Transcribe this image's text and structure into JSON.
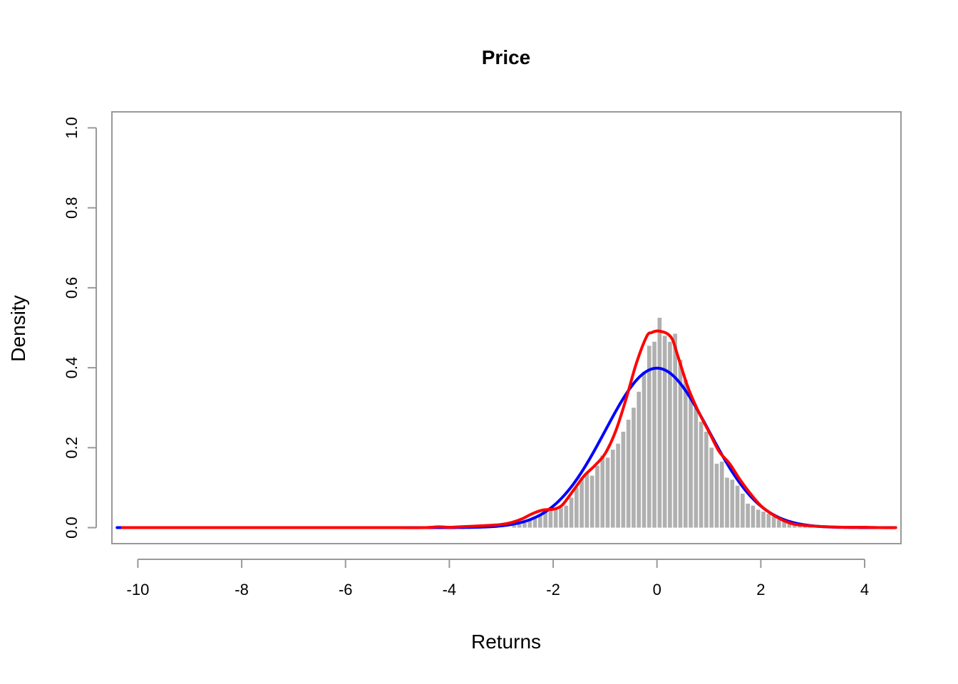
{
  "chart_data": {
    "type": "bar",
    "title": "Price",
    "xlabel": "Returns",
    "ylabel": "Density",
    "xlim": [
      -10.5,
      4.7
    ],
    "ylim": [
      -0.04,
      1.04
    ],
    "xticks": [
      -10,
      -8,
      -6,
      -4,
      -2,
      0,
      2,
      4
    ],
    "yticks": [
      0.0,
      0.2,
      0.4,
      0.6,
      0.8,
      1.0
    ],
    "xtick_labels": [
      "-10",
      "-8",
      "-6",
      "-4",
      "-2",
      "0",
      "2",
      "4"
    ],
    "ytick_labels": [
      "0.0",
      "0.2",
      "0.4",
      "0.6",
      "0.8",
      "1.0"
    ],
    "histogram": {
      "bin_width": 0.1,
      "color": "#b0b0b0",
      "bins": [
        [
          -2.8,
          0.005
        ],
        [
          -2.7,
          0.008
        ],
        [
          -2.6,
          0.012
        ],
        [
          -2.5,
          0.018
        ],
        [
          -2.4,
          0.024
        ],
        [
          -2.3,
          0.032
        ],
        [
          -2.2,
          0.04
        ],
        [
          -2.1,
          0.045
        ],
        [
          -2.0,
          0.048
        ],
        [
          -1.9,
          0.05
        ],
        [
          -1.8,
          0.055
        ],
        [
          -1.7,
          0.075
        ],
        [
          -1.6,
          0.1
        ],
        [
          -1.5,
          0.125
        ],
        [
          -1.4,
          0.135
        ],
        [
          -1.3,
          0.13
        ],
        [
          -1.2,
          0.155
        ],
        [
          -1.1,
          0.18
        ],
        [
          -1.0,
          0.175
        ],
        [
          -0.9,
          0.195
        ],
        [
          -0.8,
          0.21
        ],
        [
          -0.7,
          0.24
        ],
        [
          -0.6,
          0.27
        ],
        [
          -0.5,
          0.3
        ],
        [
          -0.4,
          0.34
        ],
        [
          -0.3,
          0.39
        ],
        [
          -0.2,
          0.455
        ],
        [
          -0.1,
          0.465
        ],
        [
          0.0,
          0.525
        ],
        [
          0.1,
          0.48
        ],
        [
          0.2,
          0.465
        ],
        [
          0.3,
          0.485
        ],
        [
          0.4,
          0.42
        ],
        [
          0.5,
          0.37
        ],
        [
          0.6,
          0.33
        ],
        [
          0.7,
          0.3
        ],
        [
          0.8,
          0.265
        ],
        [
          0.9,
          0.24
        ],
        [
          1.0,
          0.2
        ],
        [
          1.1,
          0.16
        ],
        [
          1.2,
          0.165
        ],
        [
          1.3,
          0.125
        ],
        [
          1.4,
          0.12
        ],
        [
          1.5,
          0.105
        ],
        [
          1.6,
          0.085
        ],
        [
          1.7,
          0.06
        ],
        [
          1.8,
          0.055
        ],
        [
          1.9,
          0.045
        ],
        [
          2.0,
          0.04
        ],
        [
          2.1,
          0.035
        ],
        [
          2.2,
          0.028
        ],
        [
          2.3,
          0.02
        ],
        [
          2.4,
          0.015
        ],
        [
          2.5,
          0.012
        ],
        [
          2.6,
          0.01
        ],
        [
          2.7,
          0.006
        ],
        [
          2.8,
          0.004
        ],
        [
          2.9,
          0.003
        ]
      ]
    },
    "series": [
      {
        "kind": "normal-density",
        "color": "#0000ff",
        "mean": 0,
        "sd": 1
      },
      {
        "kind": "kernel-density",
        "color": "#ff0000",
        "x": [
          -10.3,
          -9,
          -8,
          -7,
          -6,
          -5,
          -4.5,
          -4.2,
          -4.0,
          -3.8,
          -3.5,
          -3.2,
          -3.0,
          -2.8,
          -2.6,
          -2.4,
          -2.2,
          -2.0,
          -1.9,
          -1.8,
          -1.6,
          -1.4,
          -1.2,
          -1.0,
          -0.8,
          -0.6,
          -0.4,
          -0.2,
          -0.1,
          0.0,
          0.1,
          0.2,
          0.3,
          0.4,
          0.6,
          0.8,
          1.0,
          1.2,
          1.4,
          1.6,
          1.8,
          2.0,
          2.2,
          2.4,
          2.6,
          2.8,
          3.0,
          3.3,
          3.6,
          4.0,
          4.3,
          4.6
        ],
        "y": [
          0.0,
          0.0,
          0.0,
          0.0,
          0.0,
          0.0,
          0.0,
          0.002,
          0.001,
          0.002,
          0.004,
          0.006,
          0.008,
          0.013,
          0.022,
          0.035,
          0.044,
          0.046,
          0.05,
          0.06,
          0.095,
          0.13,
          0.155,
          0.185,
          0.24,
          0.32,
          0.41,
          0.478,
          0.488,
          0.492,
          0.49,
          0.485,
          0.47,
          0.43,
          0.35,
          0.29,
          0.24,
          0.19,
          0.16,
          0.12,
          0.085,
          0.055,
          0.035,
          0.02,
          0.01,
          0.006,
          0.004,
          0.002,
          0.001,
          0.001,
          0.0,
          0.0
        ]
      }
    ]
  }
}
